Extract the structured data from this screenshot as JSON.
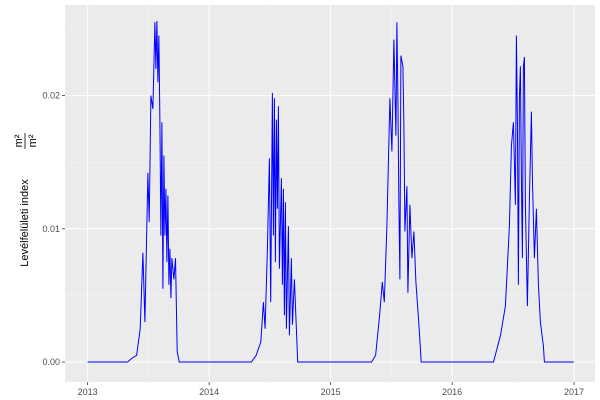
{
  "chart_data": {
    "type": "line",
    "title": "",
    "xlabel": "",
    "ylabel": "Levélfelületi index",
    "ylabel_unit": {
      "numerator": "m²",
      "denominator": "m²"
    },
    "xlim": [
      "2012-10-25",
      "2017-03-05"
    ],
    "ylim": [
      -0.0015,
      0.0268
    ],
    "x_ticks": [
      "2013",
      "2014",
      "2015",
      "2016",
      "2017"
    ],
    "y_ticks": [
      "0.00",
      "0.01",
      "0.02"
    ],
    "y_tick_values": [
      0,
      0.01,
      0.02
    ],
    "grid": true,
    "color": "#0000ff",
    "background": "#ebebeb",
    "series": [
      {
        "points": [
          [
            "2013-01-01",
            0
          ],
          [
            "2013-05-01",
            0
          ],
          [
            "2013-05-15",
            0.0003
          ],
          [
            "2013-05-28",
            0.0005
          ],
          [
            "2013-06-08",
            0.0025
          ],
          [
            "2013-06-16",
            0.0082
          ],
          [
            "2013-06-22",
            0.003
          ],
          [
            "2013-07-01",
            0.0142
          ],
          [
            "2013-07-05",
            0.0105
          ],
          [
            "2013-07-10",
            0.02
          ],
          [
            "2013-07-16",
            0.019
          ],
          [
            "2013-07-22",
            0.0255
          ],
          [
            "2013-07-25",
            0.022
          ],
          [
            "2013-07-28",
            0.0256
          ],
          [
            "2013-07-31",
            0.021
          ],
          [
            "2013-08-03",
            0.0245
          ],
          [
            "2013-08-06",
            0.018
          ],
          [
            "2013-08-09",
            0.0095
          ],
          [
            "2013-08-12",
            0.018
          ],
          [
            "2013-08-15",
            0.0055
          ],
          [
            "2013-08-18",
            0.0155
          ],
          [
            "2013-08-21",
            0.0095
          ],
          [
            "2013-08-24",
            0.013
          ],
          [
            "2013-08-27",
            0.0075
          ],
          [
            "2013-08-30",
            0.0125
          ],
          [
            "2013-09-02",
            0.0058
          ],
          [
            "2013-09-05",
            0.0085
          ],
          [
            "2013-09-08",
            0.0048
          ],
          [
            "2013-09-11",
            0.0078
          ],
          [
            "2013-09-17",
            0.0062
          ],
          [
            "2013-09-22",
            0.0078
          ],
          [
            "2013-09-27",
            0.0008
          ],
          [
            "2013-10-03",
            0
          ],
          [
            "2014-01-01",
            0
          ],
          [
            "2014-05-08",
            0
          ],
          [
            "2014-05-22",
            0.0005
          ],
          [
            "2014-06-05",
            0.0015
          ],
          [
            "2014-06-13",
            0.0045
          ],
          [
            "2014-06-18",
            0.0025
          ],
          [
            "2014-06-25",
            0.0085
          ],
          [
            "2014-07-01",
            0.0153
          ],
          [
            "2014-07-05",
            0.0045
          ],
          [
            "2014-07-10",
            0.0202
          ],
          [
            "2014-07-13",
            0.0095
          ],
          [
            "2014-07-16",
            0.0198
          ],
          [
            "2014-07-19",
            0.0075
          ],
          [
            "2014-07-22",
            0.0182
          ],
          [
            "2014-07-25",
            0.0115
          ],
          [
            "2014-07-28",
            0.0192
          ],
          [
            "2014-07-31",
            0.007
          ],
          [
            "2014-08-06",
            0.0138
          ],
          [
            "2014-08-09",
            0.0058
          ],
          [
            "2014-08-12",
            0.013
          ],
          [
            "2014-08-15",
            0.0035
          ],
          [
            "2014-08-18",
            0.012
          ],
          [
            "2014-08-21",
            0.0025
          ],
          [
            "2014-08-27",
            0.0102
          ],
          [
            "2014-08-30",
            0.002
          ],
          [
            "2014-09-05",
            0.0078
          ],
          [
            "2014-09-08",
            0.0028
          ],
          [
            "2014-09-14",
            0.0062
          ],
          [
            "2014-09-24",
            0
          ],
          [
            "2015-01-01",
            0
          ],
          [
            "2015-05-04",
            0
          ],
          [
            "2015-05-16",
            0.0005
          ],
          [
            "2015-05-28",
            0.0035
          ],
          [
            "2015-06-05",
            0.006
          ],
          [
            "2015-06-11",
            0.0045
          ],
          [
            "2015-06-19",
            0.0102
          ],
          [
            "2015-06-28",
            0.0198
          ],
          [
            "2015-07-04",
            0.0158
          ],
          [
            "2015-07-10",
            0.0242
          ],
          [
            "2015-07-16",
            0.017
          ],
          [
            "2015-07-19",
            0.0255
          ],
          [
            "2015-07-22",
            0.0198
          ],
          [
            "2015-07-25",
            0.0118
          ],
          [
            "2015-07-28",
            0.0062
          ],
          [
            "2015-07-31",
            0.023
          ],
          [
            "2015-08-06",
            0.0222
          ],
          [
            "2015-08-09",
            0.0178
          ],
          [
            "2015-08-12",
            0.0098
          ],
          [
            "2015-08-18",
            0.0132
          ],
          [
            "2015-08-21",
            0.0052
          ],
          [
            "2015-08-27",
            0.0118
          ],
          [
            "2015-09-02",
            0.0078
          ],
          [
            "2015-09-08",
            0.0098
          ],
          [
            "2015-09-14",
            0.006
          ],
          [
            "2015-09-23",
            0.0028
          ],
          [
            "2015-09-30",
            0
          ],
          [
            "2016-01-01",
            0
          ],
          [
            "2016-05-04",
            0
          ],
          [
            "2016-05-25",
            0.002
          ],
          [
            "2016-06-09",
            0.0042
          ],
          [
            "2016-06-21",
            0.0102
          ],
          [
            "2016-06-27",
            0.0162
          ],
          [
            "2016-07-03",
            0.018
          ],
          [
            "2016-07-09",
            0.0118
          ],
          [
            "2016-07-12",
            0.0245
          ],
          [
            "2016-07-15",
            0.018
          ],
          [
            "2016-07-18",
            0.0058
          ],
          [
            "2016-07-21",
            0.0198
          ],
          [
            "2016-07-24",
            0.0222
          ],
          [
            "2016-07-27",
            0.0138
          ],
          [
            "2016-07-30",
            0.0078
          ],
          [
            "2016-08-02",
            0.0222
          ],
          [
            "2016-08-05",
            0.0229
          ],
          [
            "2016-08-08",
            0.0118
          ],
          [
            "2016-08-14",
            0.0042
          ],
          [
            "2016-08-20",
            0.0122
          ],
          [
            "2016-08-26",
            0.0188
          ],
          [
            "2016-08-29",
            0.0138
          ],
          [
            "2016-09-04",
            0.0078
          ],
          [
            "2016-09-10",
            0.0115
          ],
          [
            "2016-09-16",
            0.0058
          ],
          [
            "2016-09-22",
            0.003
          ],
          [
            "2016-10-01",
            0.0012
          ],
          [
            "2016-10-04",
            0
          ],
          [
            "2016-12-31",
            0
          ]
        ]
      }
    ]
  }
}
